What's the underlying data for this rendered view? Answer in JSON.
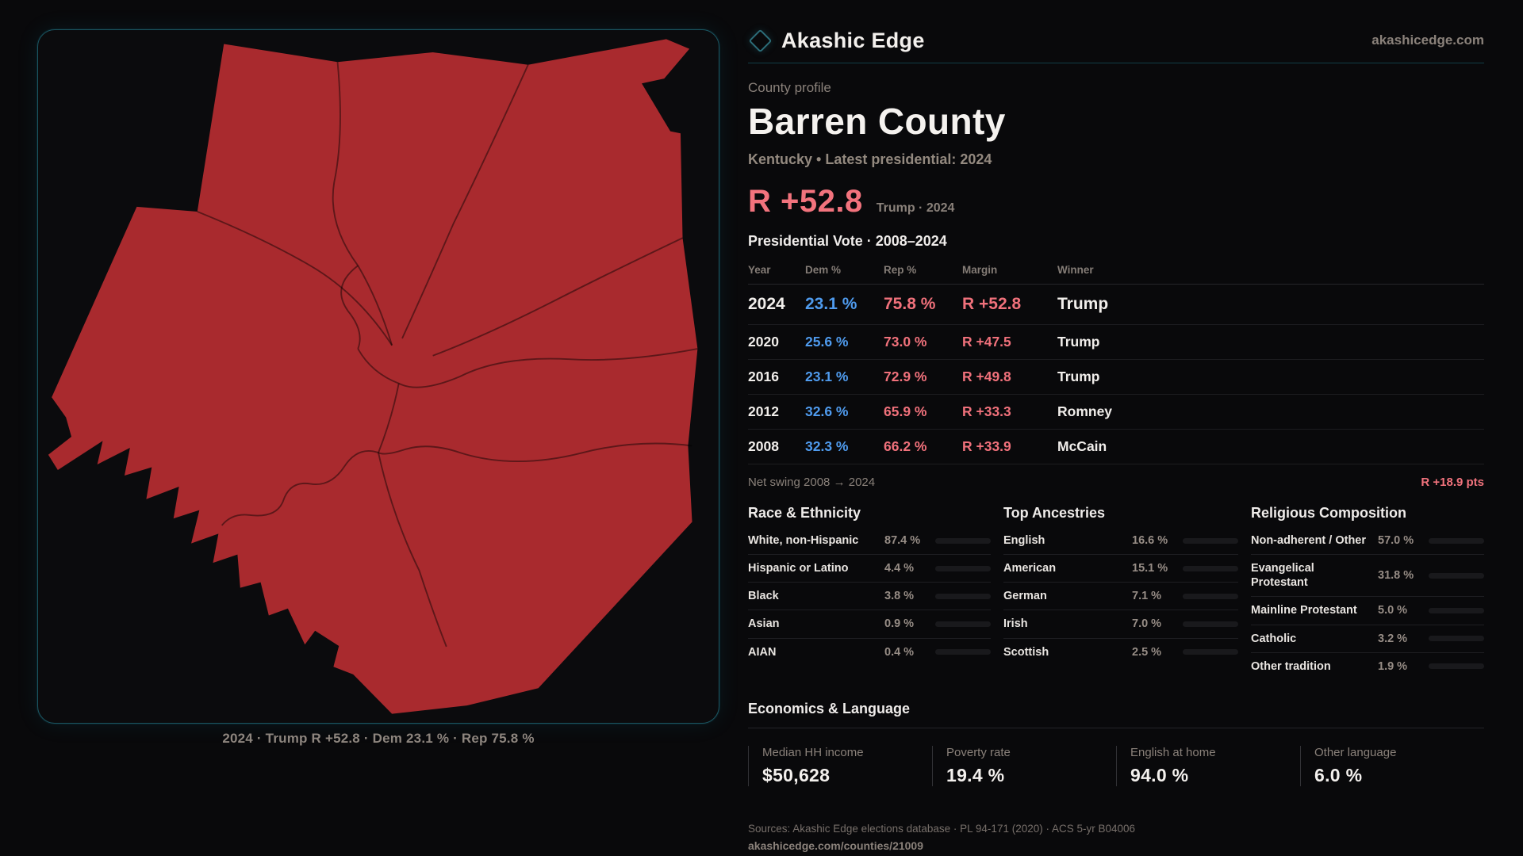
{
  "brand": {
    "name": "Akashic Edge",
    "site": "akashicedge.com"
  },
  "profile": {
    "kicker": "County profile",
    "title": "Barren County",
    "subtitle": "Kentucky • Latest presidential: 2024",
    "margin_big": "R +52.8",
    "margin_note": "Trump · 2024"
  },
  "map": {
    "caption": "2024 · Trump R +52.8 · Dem 23.1 % · Rep 75.8 %"
  },
  "election_table": {
    "title": "Presidential Vote · 2008–2024",
    "columns": {
      "year": "Year",
      "dem": "Dem %",
      "rep": "Rep %",
      "margin": "Margin",
      "winner": "Winner"
    },
    "rows": [
      {
        "year": "2024",
        "dem": "23.1 %",
        "rep": "75.8 %",
        "margin": "R +52.8",
        "winner": "Trump"
      },
      {
        "year": "2020",
        "dem": "25.6 %",
        "rep": "73.0 %",
        "margin": "R +47.5",
        "winner": "Trump"
      },
      {
        "year": "2016",
        "dem": "23.1 %",
        "rep": "72.9 %",
        "margin": "R +49.8",
        "winner": "Trump"
      },
      {
        "year": "2012",
        "dem": "32.6 %",
        "rep": "65.9 %",
        "margin": "R +33.3",
        "winner": "Romney"
      },
      {
        "year": "2008",
        "dem": "32.3 %",
        "rep": "66.2 %",
        "margin": "R +33.9",
        "winner": "McCain"
      }
    ]
  },
  "net_swing": {
    "label": "Net swing 2008 → 2024",
    "value": "R +18.9 pts"
  },
  "demographics": {
    "race": {
      "title": "Race & Ethnicity",
      "rows": [
        {
          "label": "White, non-Hispanic",
          "value": "87.4 %",
          "pct": 87.4,
          "color": "#a9c0d6"
        },
        {
          "label": "Hispanic or Latino",
          "value": "4.4 %",
          "pct": 4.4,
          "color": "#e09b2d"
        },
        {
          "label": "Black",
          "value": "3.8 %",
          "pct": 3.8,
          "color": "#8579e0"
        },
        {
          "label": "Asian",
          "value": "0.9 %",
          "pct": 0.9,
          "color": "#9fb0c0"
        },
        {
          "label": "AIAN",
          "value": "0.4 %",
          "pct": 0.4,
          "color": "#9fb0c0"
        }
      ]
    },
    "ancestries": {
      "title": "Top Ancestries",
      "rows": [
        {
          "label": "English",
          "value": "16.6 %",
          "pct": 16.6,
          "color": "#94acc4"
        },
        {
          "label": "American",
          "value": "15.1 %",
          "pct": 15.1,
          "color": "#94acc4"
        },
        {
          "label": "German",
          "value": "7.1 %",
          "pct": 7.1,
          "color": "#b9c6d2"
        },
        {
          "label": "Irish",
          "value": "7.0 %",
          "pct": 7.0,
          "color": "#b9c6d2"
        },
        {
          "label": "Scottish",
          "value": "2.5 %",
          "pct": 2.5,
          "color": "#d2d2d2"
        }
      ]
    },
    "religion": {
      "title": "Religious Composition",
      "rows": [
        {
          "label": "Non-adherent / Other",
          "value": "57.0 %",
          "pct": 57.0,
          "color": "#69718c"
        },
        {
          "label": "Evangelical Protestant",
          "value": "31.8 %",
          "pct": 31.8,
          "color": "#d9616a"
        },
        {
          "label": "Mainline Protestant",
          "value": "5.0 %",
          "pct": 5.0,
          "color": "#4a8bf0"
        },
        {
          "label": "Catholic",
          "value": "3.2 %",
          "pct": 3.2,
          "color": "#d9a21f"
        },
        {
          "label": "Other tradition",
          "value": "1.9 %",
          "pct": 1.9,
          "color": "#a8a8a8"
        }
      ]
    }
  },
  "economics": {
    "title": "Economics & Language",
    "stats": [
      {
        "label": "Median HH income",
        "value": "$50,628"
      },
      {
        "label": "Poverty rate",
        "value": "19.4 %"
      },
      {
        "label": "English at home",
        "value": "94.0 %"
      },
      {
        "label": "Other language",
        "value": "6.0 %"
      }
    ]
  },
  "footer": {
    "sources": "Sources: Akashic Edge elections database · PL 94-171 (2020) · ACS 5-yr B04006",
    "link": "akashicedge.com/counties/21009"
  },
  "colors": {
    "accent_teal": "#1b5662",
    "dem_blue": "#4f9bee",
    "rep_red": "#f0717b",
    "map_fill": "#a92a2e",
    "background": "#09090b"
  }
}
